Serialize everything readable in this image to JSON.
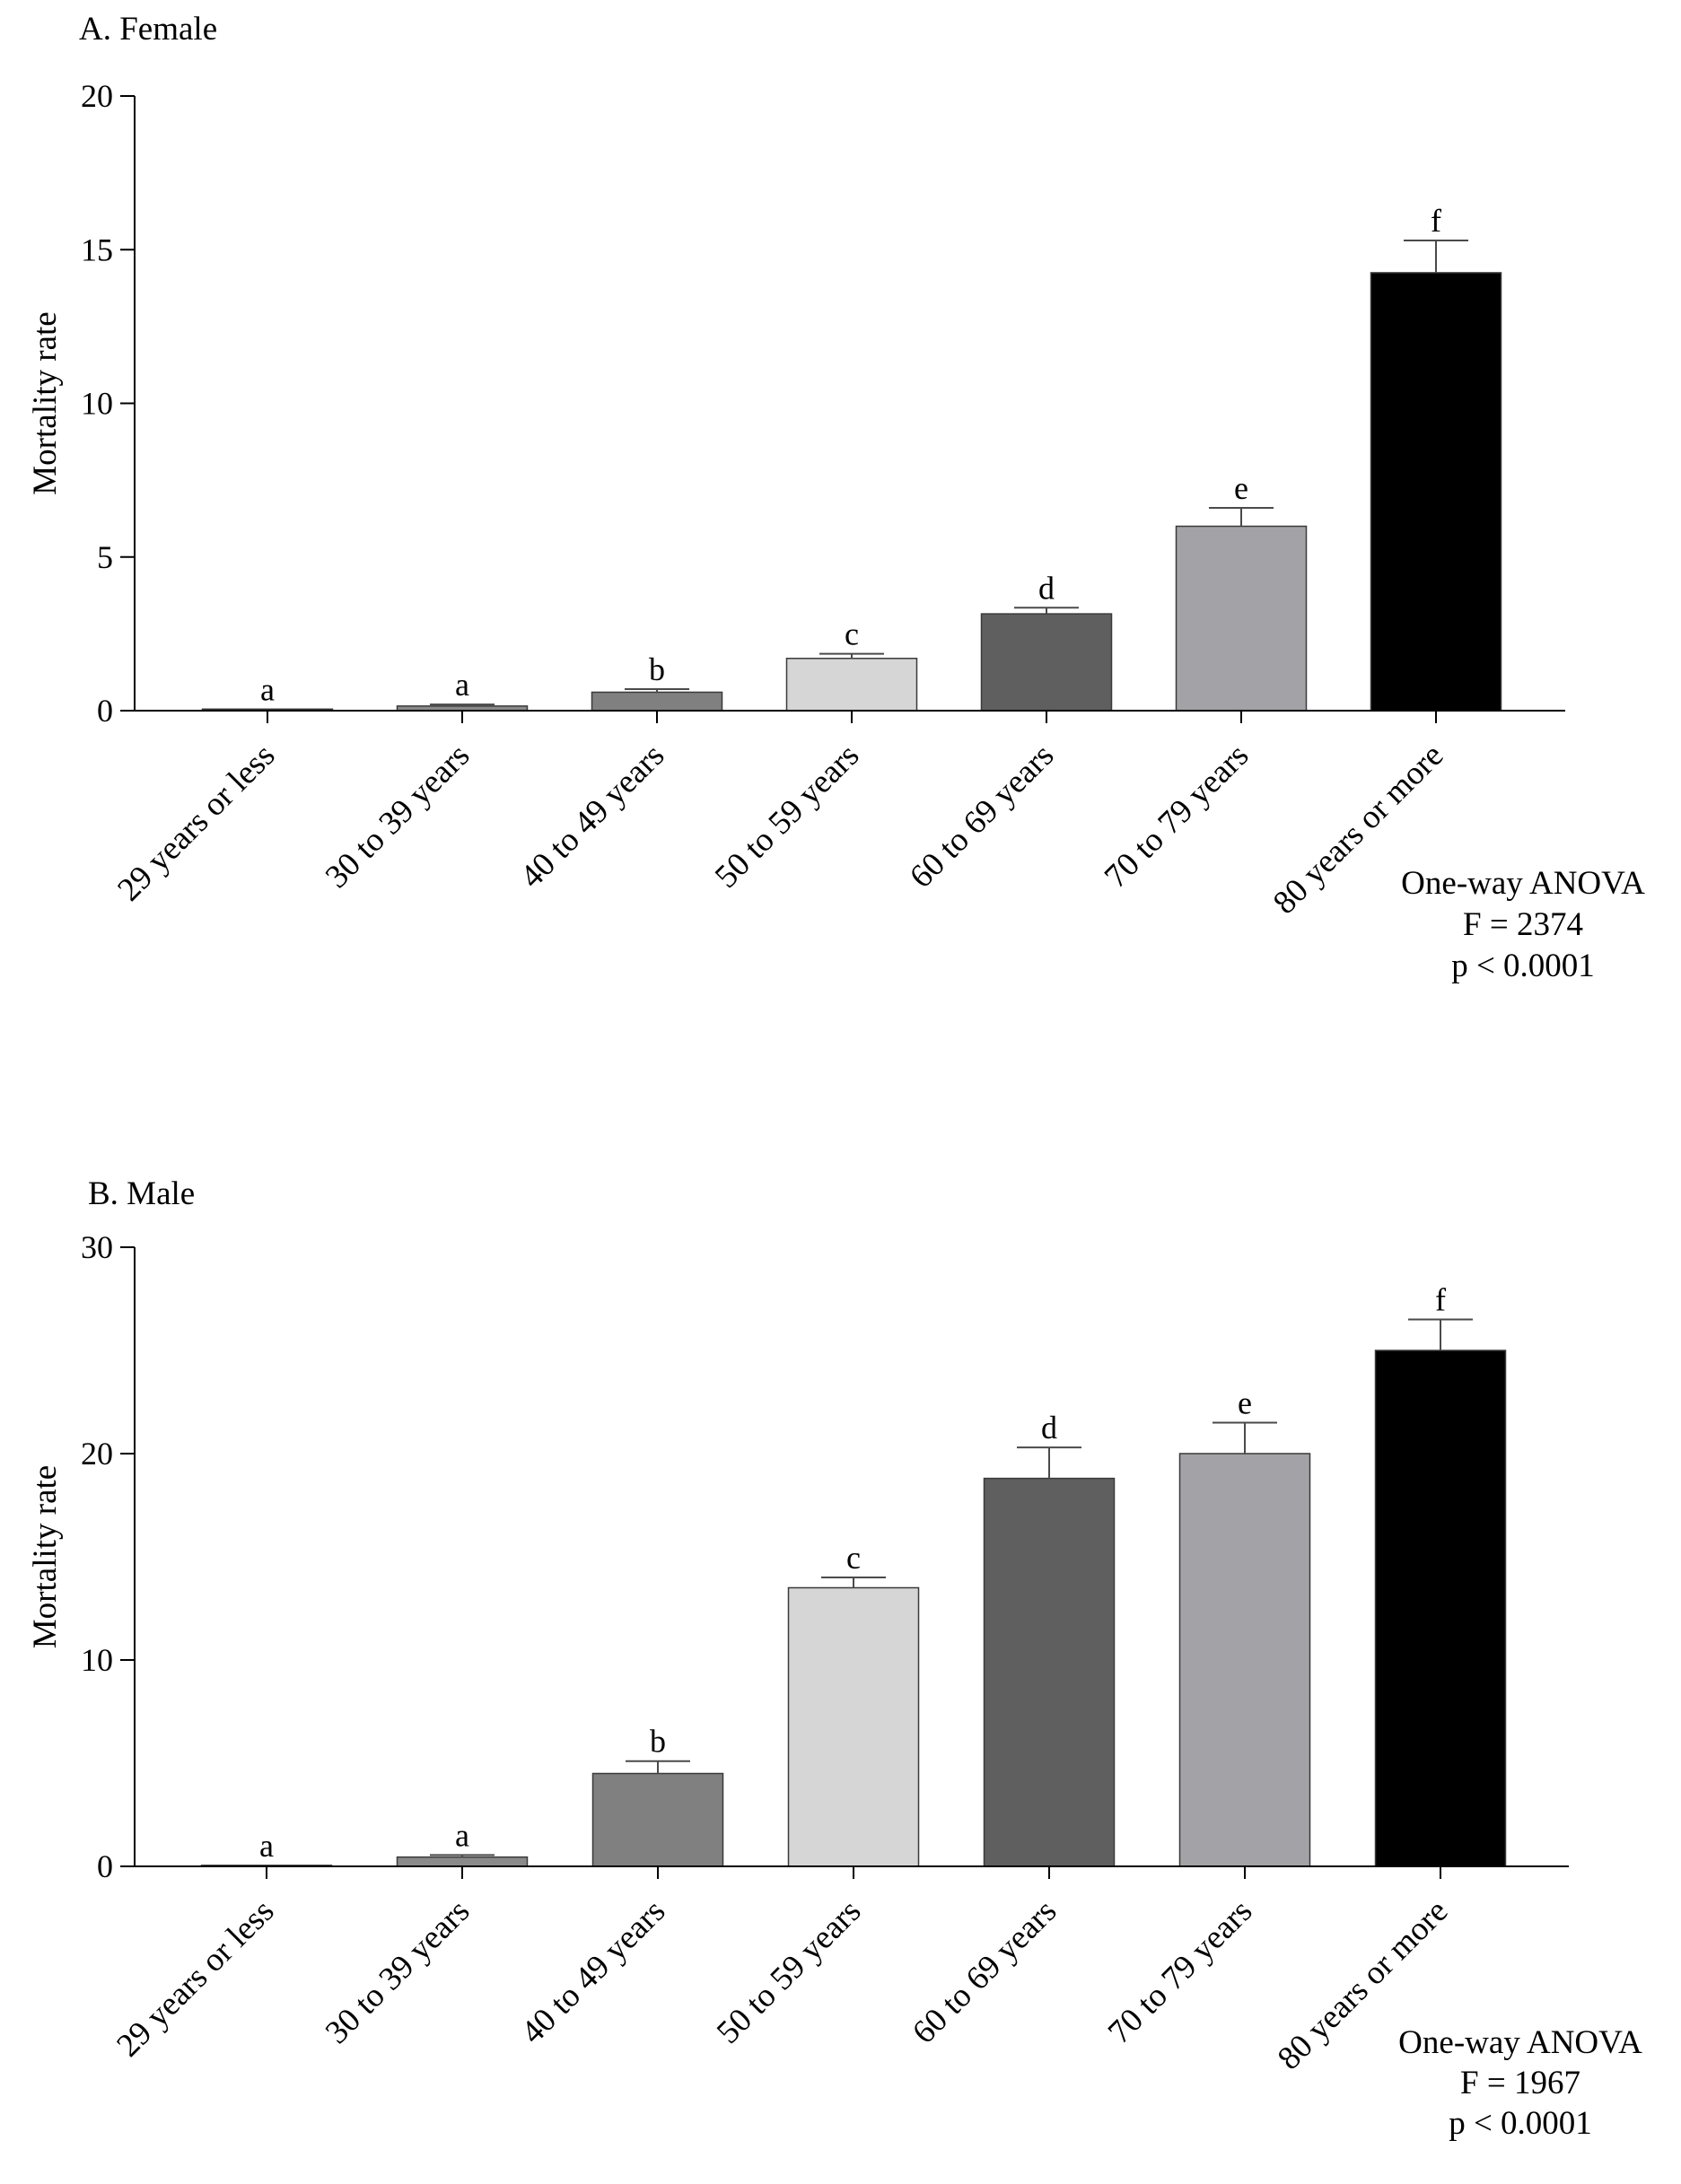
{
  "chart_data": [
    {
      "type": "bar",
      "panel_title": "A.  Female",
      "ylabel": "Mortality rate",
      "ylim": [
        0,
        20
      ],
      "yticks": [
        0,
        5,
        10,
        15,
        20
      ],
      "categories": [
        "29 years or less",
        "30 to 39 years",
        "40 to 49 years",
        "50 to 59 years",
        "60 to 69 years",
        "70 to 79 years",
        "80 years or more"
      ],
      "values": [
        0.05,
        0.15,
        0.6,
        1.7,
        3.15,
        6.0,
        14.25
      ],
      "errors": [
        0.0,
        0.05,
        0.1,
        0.15,
        0.2,
        0.6,
        1.05
      ],
      "letters": [
        "a",
        "a",
        "b",
        "c",
        "d",
        "e",
        "f"
      ],
      "colors": [
        "#8a8a8a",
        "#8a8a8a",
        "#808080",
        "#d6d6d6",
        "#5f5f5f",
        "#a3a2a7",
        "#000000"
      ],
      "annotation": [
        "One-way ANOVA",
        "F = 2374",
        "p < 0.0001"
      ]
    },
    {
      "type": "bar",
      "panel_title": "B.  Male",
      "ylabel": "Mortality rate",
      "ylim": [
        0,
        30
      ],
      "yticks": [
        0,
        10,
        20,
        30
      ],
      "categories": [
        "29 years or less",
        "30 to 39 years",
        "40 to 49 years",
        "50 to 59 years",
        "60 to 69 years",
        "70 to 79 years",
        "80 years or more"
      ],
      "values": [
        0.05,
        0.45,
        4.5,
        13.5,
        18.8,
        20.0,
        25.0
      ],
      "errors": [
        0.0,
        0.1,
        0.6,
        0.5,
        1.5,
        1.5,
        1.5
      ],
      "letters": [
        "a",
        "a",
        "b",
        "c",
        "d",
        "e",
        "f"
      ],
      "colors": [
        "#8a8a8a",
        "#8a8a8a",
        "#808080",
        "#d6d6d6",
        "#5f5f5f",
        "#a3a2a7",
        "#000000"
      ],
      "annotation": [
        "One-way ANOVA",
        "F = 1967",
        "p < 0.0001"
      ]
    }
  ]
}
